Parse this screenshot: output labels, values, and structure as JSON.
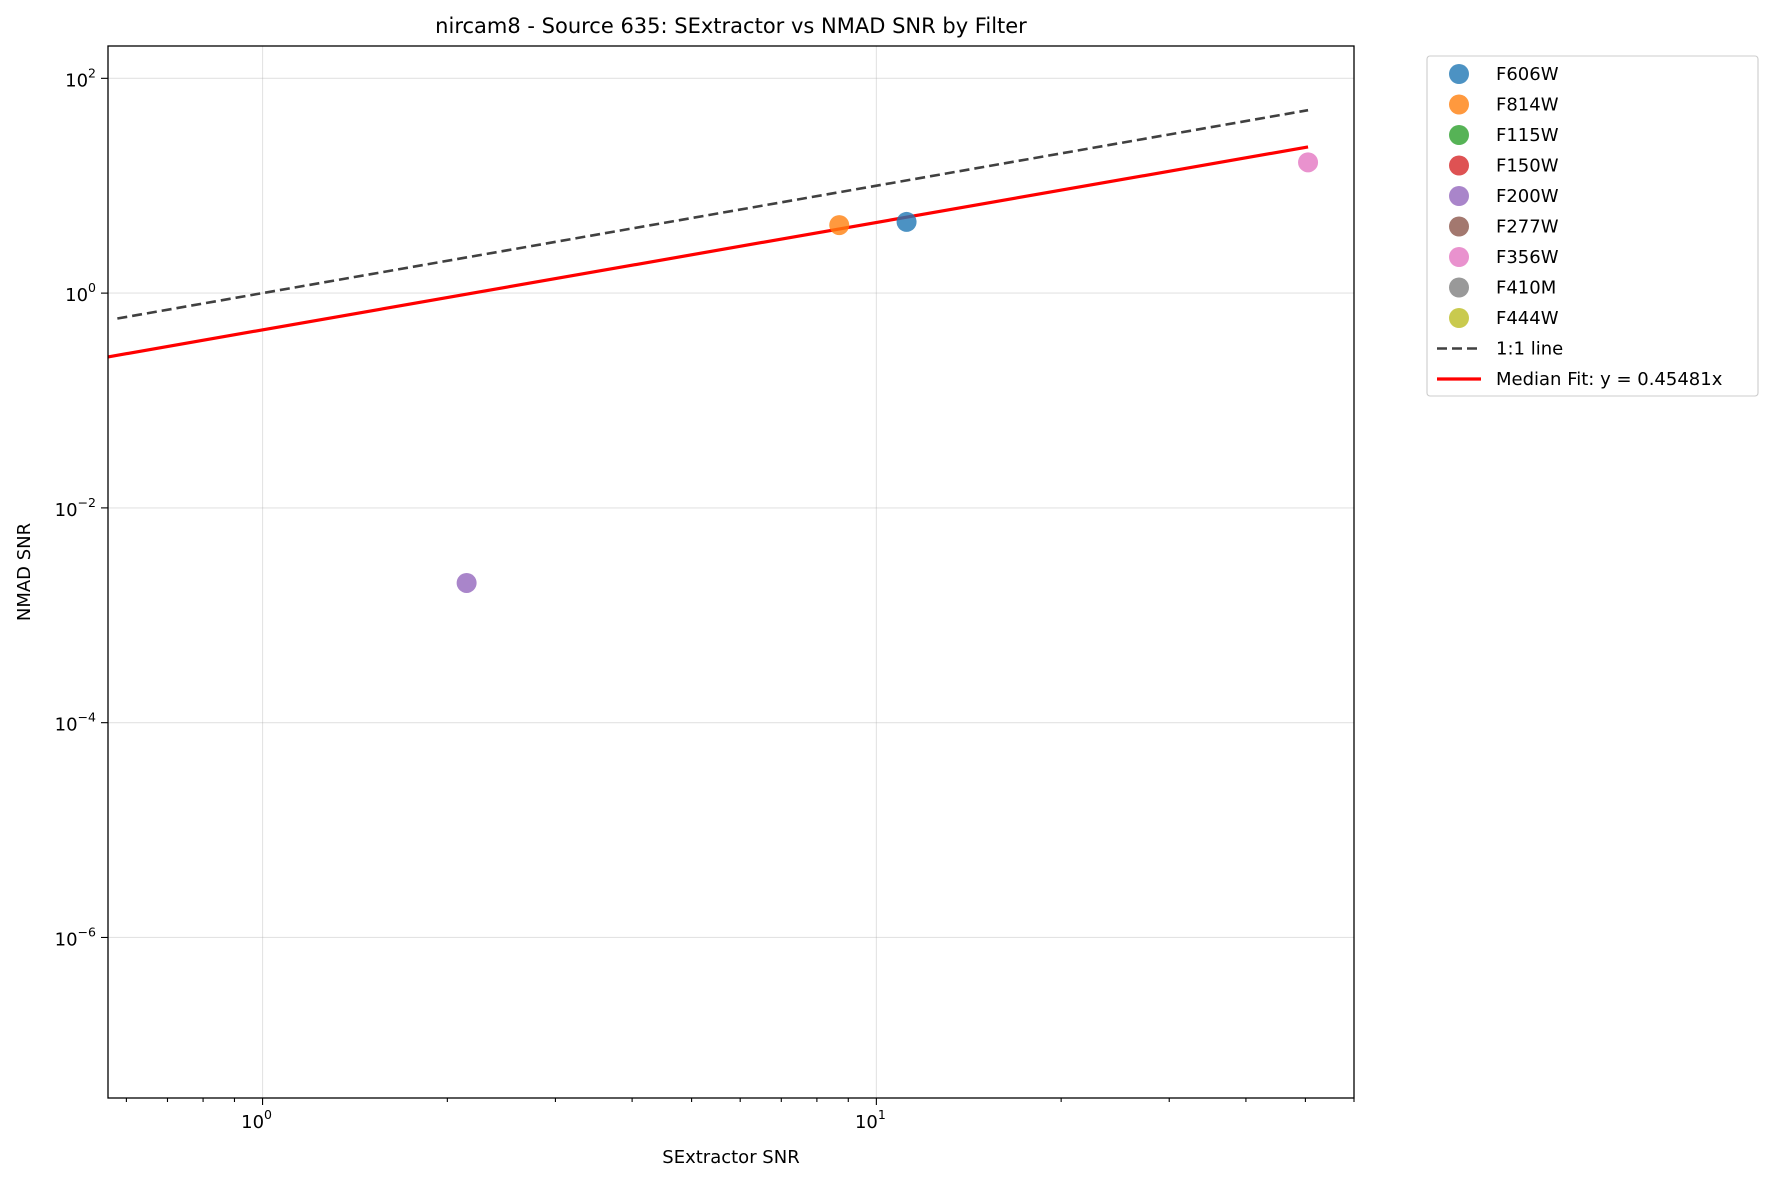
{
  "chart_data": {
    "type": "scatter",
    "title": "nircam8 - Source 635: SExtractor vs NMAD SNR by Filter",
    "xlabel": "SExtractor SNR",
    "ylabel": "NMAD SNR",
    "xscale": "log",
    "yscale": "log",
    "xlim": [
      0.56,
      60
    ],
    "ylim": [
      3.2e-08,
      200
    ],
    "grid": true,
    "legend_position": "outside-right",
    "x_ticks": [
      {
        "value": 1,
        "base": "10",
        "exp": "0"
      },
      {
        "value": 10,
        "base": "10",
        "exp": "1"
      }
    ],
    "y_ticks": [
      {
        "value": 100,
        "base": "10",
        "exp": "2"
      },
      {
        "value": 1,
        "base": "10",
        "exp": "0"
      },
      {
        "value": 0.01,
        "base": "10",
        "exp": "−2"
      },
      {
        "value": 0.0001,
        "base": "10",
        "exp": "−4"
      },
      {
        "value": 1e-06,
        "base": "10",
        "exp": "−6"
      }
    ],
    "series": [
      {
        "name": "F606W",
        "color": "#1f77b4",
        "points": [
          {
            "x": 11.2,
            "y": 4.6
          }
        ]
      },
      {
        "name": "F814W",
        "color": "#ff7f0e",
        "points": [
          {
            "x": 8.7,
            "y": 4.3
          }
        ]
      },
      {
        "name": "F115W",
        "color": "#2ca02c",
        "points": []
      },
      {
        "name": "F150W",
        "color": "#d62728",
        "points": []
      },
      {
        "name": "F200W",
        "color": "#9467bd",
        "points": [
          {
            "x": 2.15,
            "y": 0.002
          }
        ]
      },
      {
        "name": "F277W",
        "color": "#8c564b",
        "points": []
      },
      {
        "name": "F356W",
        "color": "#e377c2",
        "points": [
          {
            "x": 50.5,
            "y": 16.5
          }
        ]
      },
      {
        "name": "F410M",
        "color": "#7f7f7f",
        "points": []
      },
      {
        "name": "F444W",
        "color": "#bcbd22",
        "points": []
      }
    ],
    "lines": [
      {
        "name": "1:1 line",
        "color": "#404040",
        "style": "dashed",
        "slope": 1.0,
        "x_range": [
          0.58,
          50.5
        ]
      },
      {
        "name": "Median Fit: y = 0.45481x",
        "color": "#ff0000",
        "style": "solid",
        "slope": 0.45481,
        "x_range": [
          0.56,
          50.5
        ]
      }
    ]
  }
}
